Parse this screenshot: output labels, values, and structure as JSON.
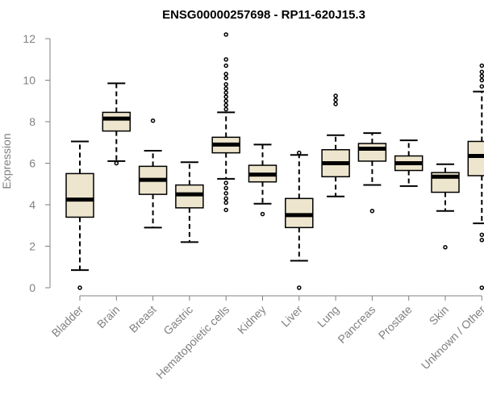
{
  "chart_data": {
    "type": "boxplot",
    "title": "ENSG00000257698 - RP11-620J15.3",
    "ylabel": "Expression",
    "xlabel": "",
    "ylim": [
      0,
      12
    ],
    "yticks": [
      0,
      2,
      4,
      6,
      8,
      10,
      12
    ],
    "grid": false,
    "colors": {
      "box_fill": "#ede5cd",
      "box_stroke": "#000000",
      "axis": "#808080",
      "text": "#808080"
    },
    "categories": [
      "Bladder",
      "Brain",
      "Breast",
      "Gastric",
      "Hematopoietic cells",
      "Kidney",
      "Liver",
      "Lung",
      "Pancreas",
      "Prostate",
      "Skin",
      "Unknown / Other"
    ],
    "boxes": [
      {
        "min": 0.85,
        "q1": 3.4,
        "median": 4.25,
        "q3": 5.5,
        "max": 7.05,
        "outliers": [
          0.0
        ]
      },
      {
        "min": 6.1,
        "q1": 7.55,
        "median": 8.15,
        "q3": 8.45,
        "max": 9.85,
        "outliers": [
          6.0
        ]
      },
      {
        "min": 2.9,
        "q1": 4.5,
        "median": 5.2,
        "q3": 5.85,
        "max": 6.6,
        "outliers": [
          8.05
        ]
      },
      {
        "min": 2.2,
        "q1": 3.85,
        "median": 4.5,
        "q3": 4.95,
        "max": 6.05,
        "outliers": []
      },
      {
        "min": 5.25,
        "q1": 6.5,
        "median": 6.9,
        "q3": 7.25,
        "max": 8.45,
        "outliers": [
          3.75,
          4.1,
          4.3,
          4.55,
          4.8,
          5.05,
          8.6,
          8.8,
          9.0,
          9.2,
          9.4,
          9.6,
          9.8,
          10.1,
          10.3,
          10.7,
          11.0,
          12.2
        ]
      },
      {
        "min": 4.05,
        "q1": 5.1,
        "median": 5.45,
        "q3": 5.9,
        "max": 6.9,
        "outliers": [
          3.55
        ]
      },
      {
        "min": 1.3,
        "q1": 2.9,
        "median": 3.5,
        "q3": 4.3,
        "max": 6.4,
        "outliers": [
          0.0,
          6.5
        ]
      },
      {
        "min": 4.4,
        "q1": 5.35,
        "median": 6.0,
        "q3": 6.65,
        "max": 7.35,
        "outliers": [
          8.85,
          9.05,
          9.25
        ]
      },
      {
        "min": 4.95,
        "q1": 6.1,
        "median": 6.7,
        "q3": 6.95,
        "max": 7.45,
        "outliers": [
          3.7
        ]
      },
      {
        "min": 4.9,
        "q1": 5.65,
        "median": 6.0,
        "q3": 6.35,
        "max": 7.1,
        "outliers": []
      },
      {
        "min": 3.7,
        "q1": 4.6,
        "median": 5.35,
        "q3": 5.55,
        "max": 5.95,
        "outliers": [
          1.95
        ]
      },
      {
        "min": 3.1,
        "q1": 5.4,
        "median": 6.35,
        "q3": 7.05,
        "max": 9.45,
        "outliers": [
          0.0,
          2.3,
          2.55,
          9.7,
          10.0,
          10.2,
          10.4,
          10.7
        ]
      }
    ]
  }
}
